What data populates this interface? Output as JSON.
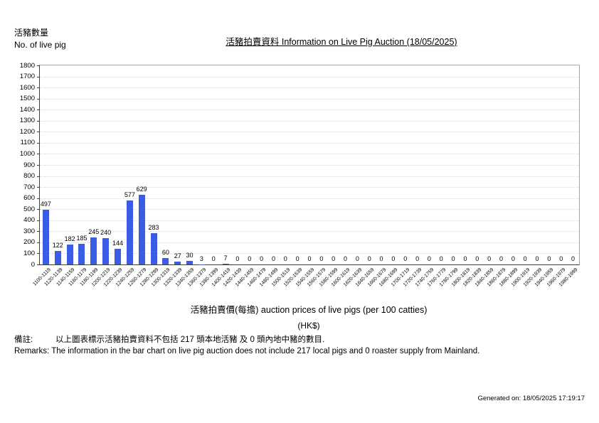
{
  "page": {
    "y_axis_label_zh": "活豬數量",
    "y_axis_label_en": "No. of live pig",
    "title": "活豬拍賣資料 Information on Live Pig Auction (18/05/2025)",
    "x_axis_title": "活豬拍賣價(每擔) auction prices of live pigs (per 100 catties)",
    "x_axis_unit": "(HK$)",
    "remarks_zh_label": "備註:",
    "remarks_zh": "以上圖表標示活豬拍賣資料不包括 217 頭本地活豬 及 0 頭內地中豬的數目.",
    "remarks_en": "Remarks: The information in the bar chart on live pig auction does not include 217 local pigs and 0 roaster supply from Mainland.",
    "generated_on": "Generated on: 18/05/2025 17:19:17"
  },
  "chart_data": {
    "type": "bar",
    "title": "活豬拍賣資料 Information on Live Pig Auction (18/05/2025)",
    "xlabel": "活豬拍賣價(每擔) auction prices of live pigs (per 100 catties) (HK$)",
    "ylabel": "活豬數量 No. of live pig",
    "ylim": [
      0,
      1800
    ],
    "y_tick_step": 100,
    "grid": true,
    "legend": "none",
    "bar_color": "#3b5ce4",
    "categories": [
      "1100-1119",
      "1120-1139",
      "1140-1159",
      "1160-1179",
      "1180-1199",
      "1200-1219",
      "1220-1239",
      "1240-1259",
      "1260-1279",
      "1280-1299",
      "1300-1319",
      "1320-1339",
      "1340-1359",
      "1360-1379",
      "1380-1399",
      "1400-1419",
      "1420-1439",
      "1440-1459",
      "1460-1479",
      "1480-1499",
      "1500-1519",
      "1520-1539",
      "1540-1559",
      "1560-1579",
      "1580-1599",
      "1600-1619",
      "1620-1639",
      "1640-1659",
      "1660-1679",
      "1680-1699",
      "1700-1719",
      "1720-1739",
      "1740-1759",
      "1760-1779",
      "1780-1799",
      "1800-1819",
      "1820-1839",
      "1840-1859",
      "1860-1879",
      "1880-1899",
      "1900-1919",
      "1920-1939",
      "1940-1959",
      "1960-1979",
      "1980-1999"
    ],
    "values": [
      497,
      122,
      182,
      185,
      245,
      240,
      144,
      577,
      629,
      283,
      60,
      27,
      30,
      3,
      0,
      7,
      0,
      0,
      0,
      0,
      0,
      0,
      0,
      0,
      0,
      0,
      0,
      0,
      0,
      0,
      0,
      0,
      0,
      0,
      0,
      0,
      0,
      0,
      0,
      0,
      0,
      0,
      0,
      0,
      0
    ]
  }
}
